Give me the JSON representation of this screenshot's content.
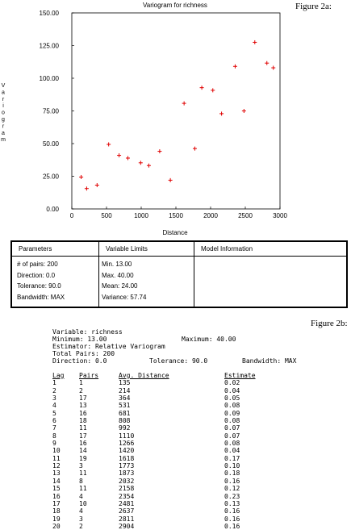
{
  "figure_labels": {
    "top": "Figure 2a:",
    "bottom": "Figure 2b:"
  },
  "chart_data": {
    "type": "scatter",
    "title": "Variogram for richness",
    "xlabel": "Distance",
    "ylabel": "Variogram",
    "xlim": [
      0,
      3000
    ],
    "ylim": [
      0,
      150
    ],
    "x_ticks": [
      "0",
      "500",
      "1000",
      "1500",
      "2000",
      "2500",
      "3000"
    ],
    "y_ticks": [
      "0.00",
      "25.00",
      "50.00",
      "75.00",
      "100.00",
      "125.00",
      "150.00"
    ],
    "marker": "+",
    "marker_color": "#e00000",
    "points": [
      {
        "x": 135,
        "y": 24.4
      },
      {
        "x": 214,
        "y": 15.6
      },
      {
        "x": 364,
        "y": 18.2
      },
      {
        "x": 531,
        "y": 49.4
      },
      {
        "x": 681,
        "y": 41.0
      },
      {
        "x": 808,
        "y": 38.9
      },
      {
        "x": 992,
        "y": 35.3
      },
      {
        "x": 1110,
        "y": 33.2
      },
      {
        "x": 1266,
        "y": 44.1
      },
      {
        "x": 1420,
        "y": 22.0
      },
      {
        "x": 1618,
        "y": 80.8
      },
      {
        "x": 1773,
        "y": 46.2
      },
      {
        "x": 1873,
        "y": 92.8
      },
      {
        "x": 2032,
        "y": 90.8
      },
      {
        "x": 2158,
        "y": 72.9
      },
      {
        "x": 2354,
        "y": 109.1
      },
      {
        "x": 2481,
        "y": 75.0
      },
      {
        "x": 2637,
        "y": 127.5
      },
      {
        "x": 2811,
        "y": 111.6
      },
      {
        "x": 2904,
        "y": 108.0
      }
    ]
  },
  "parameters_panel": {
    "headers": [
      "Parameters",
      "Variable Limits",
      "Model Information"
    ],
    "parameters": [
      "# of pairs: 200",
      "Direction: 0.0",
      "Tolerance: 90.0",
      "Bandwidth: MAX"
    ],
    "variable_limits": [
      "Min. 13.00",
      "Max. 40.00",
      "Mean: 24.00",
      "Variance: 57.74"
    ]
  },
  "report": {
    "variable": "Variable: richness",
    "minimum": "Minimum: 13.00",
    "maximum": "Maximum: 40.00",
    "estimator": "Estimator: Relative Variogram",
    "total_pairs": "Total Pairs: 200",
    "direction": "Direction: 0.0",
    "tolerance": "Tolerance: 90.0",
    "bandwidth": "Bandwidth: MAX",
    "columns": [
      "Lag",
      "Pairs",
      "Avg. Distance",
      "Estimate"
    ],
    "rows": [
      [
        "1",
        "1",
        "135",
        "0.02"
      ],
      [
        "2",
        "2",
        "214",
        "0.04"
      ],
      [
        "3",
        "17",
        "364",
        "0.05"
      ],
      [
        "4",
        "13",
        "531",
        "0.08"
      ],
      [
        "5",
        "16",
        "681",
        "0.09"
      ],
      [
        "6",
        "18",
        "808",
        "0.08"
      ],
      [
        "7",
        "11",
        "992",
        "0.07"
      ],
      [
        "8",
        "17",
        "1110",
        "0.07"
      ],
      [
        "9",
        "16",
        "1266",
        "0.08"
      ],
      [
        "10",
        "14",
        "1420",
        "0.04"
      ],
      [
        "11",
        "19",
        "1618",
        "0.17"
      ],
      [
        "12",
        "3",
        "1773",
        "0.10"
      ],
      [
        "13",
        "11",
        "1873",
        "0.18"
      ],
      [
        "14",
        "8",
        "2032",
        "0.16"
      ],
      [
        "15",
        "11",
        "2158",
        "0.12"
      ],
      [
        "16",
        "4",
        "2354",
        "0.23"
      ],
      [
        "17",
        "10",
        "2481",
        "0.13"
      ],
      [
        "18",
        "4",
        "2637",
        "0.16"
      ],
      [
        "19",
        "3",
        "2811",
        "0.16"
      ],
      [
        "20",
        "2",
        "2904",
        "0.16"
      ]
    ]
  }
}
